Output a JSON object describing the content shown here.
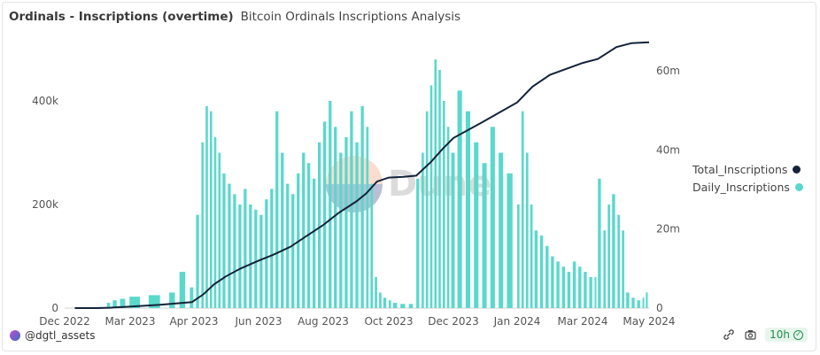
{
  "header": {
    "title": "Ordinals - Inscriptions (overtime)",
    "subtitle": "Bitcoin Ordinals Inscriptions Analysis"
  },
  "legend": {
    "total_label": "Total_Inscriptions",
    "daily_label": "Daily_Inscriptions"
  },
  "watermark": {
    "text": "Dune"
  },
  "footer": {
    "author": "@dgtl_assets",
    "refresh": "10h",
    "icons": [
      "embed-icon",
      "camera-icon",
      "check-circle-icon"
    ]
  },
  "colors": {
    "daily": "#5ad8cc",
    "total": "#13233a",
    "refresh_green": "#1e8e4e"
  },
  "chart_data": {
    "type": "bar+line",
    "x_ticks": [
      "Dec 2022",
      "Mar 2023",
      "Apr 2023",
      "Jun 2023",
      "Aug 2023",
      "Oct 2023",
      "Dec 2023",
      "Jan 2024",
      "Mar 2024",
      "May 2024"
    ],
    "x_tick_dates": [
      "2022-12-01",
      "2023-03-01",
      "2023-04-01",
      "2023-06-01",
      "2023-08-01",
      "2023-10-01",
      "2023-12-01",
      "2024-01-01",
      "2024-03-01",
      "2024-05-01"
    ],
    "y_left": {
      "ticks": [
        "0",
        "200k",
        "400k"
      ],
      "values": [
        0,
        200000,
        400000
      ],
      "range": [
        0,
        500000
      ]
    },
    "y_right": {
      "ticks": [
        "0",
        "20m",
        "40m",
        "60m"
      ],
      "values": [
        0,
        20000000,
        40000000,
        60000000
      ],
      "range": [
        0,
        70000000
      ]
    },
    "series": [
      {
        "name": "Daily_Inscriptions",
        "type": "bar",
        "axis": "left",
        "points": [
          [
            "2022-12-15",
            0
          ],
          [
            "2023-01-15",
            2000
          ],
          [
            "2023-01-28",
            10000
          ],
          [
            "2023-02-05",
            15000
          ],
          [
            "2023-02-15",
            18000
          ],
          [
            "2023-02-28",
            22000
          ],
          [
            "2023-03-10",
            25000
          ],
          [
            "2023-03-20",
            30000
          ],
          [
            "2023-03-25",
            70000
          ],
          [
            "2023-03-30",
            40000
          ],
          [
            "2023-04-03",
            180000
          ],
          [
            "2023-04-08",
            320000
          ],
          [
            "2023-04-12",
            390000
          ],
          [
            "2023-04-16",
            380000
          ],
          [
            "2023-04-20",
            330000
          ],
          [
            "2023-04-24",
            300000
          ],
          [
            "2023-04-28",
            260000
          ],
          [
            "2023-05-03",
            240000
          ],
          [
            "2023-05-08",
            220000
          ],
          [
            "2023-05-13",
            200000
          ],
          [
            "2023-05-18",
            230000
          ],
          [
            "2023-05-23",
            200000
          ],
          [
            "2023-05-28",
            190000
          ],
          [
            "2023-06-02",
            180000
          ],
          [
            "2023-06-07",
            210000
          ],
          [
            "2023-06-12",
            230000
          ],
          [
            "2023-06-17",
            380000
          ],
          [
            "2023-06-22",
            300000
          ],
          [
            "2023-06-27",
            240000
          ],
          [
            "2023-07-02",
            220000
          ],
          [
            "2023-07-07",
            260000
          ],
          [
            "2023-07-12",
            300000
          ],
          [
            "2023-07-17",
            280000
          ],
          [
            "2023-07-22",
            250000
          ],
          [
            "2023-07-27",
            320000
          ],
          [
            "2023-08-01",
            360000
          ],
          [
            "2023-08-06",
            400000
          ],
          [
            "2023-08-11",
            350000
          ],
          [
            "2023-08-16",
            300000
          ],
          [
            "2023-08-21",
            330000
          ],
          [
            "2023-08-26",
            380000
          ],
          [
            "2023-08-31",
            320000
          ],
          [
            "2023-09-05",
            390000
          ],
          [
            "2023-09-10",
            350000
          ],
          [
            "2023-09-14",
            240000
          ],
          [
            "2023-09-18",
            60000
          ],
          [
            "2023-09-22",
            30000
          ],
          [
            "2023-09-26",
            20000
          ],
          [
            "2023-10-01",
            15000
          ],
          [
            "2023-10-05",
            10000
          ],
          [
            "2023-10-12",
            8000
          ],
          [
            "2023-10-20",
            8000
          ],
          [
            "2023-10-27",
            250000
          ],
          [
            "2023-11-01",
            300000
          ],
          [
            "2023-11-05",
            380000
          ],
          [
            "2023-11-09",
            430000
          ],
          [
            "2023-11-13",
            480000
          ],
          [
            "2023-11-17",
            460000
          ],
          [
            "2023-11-21",
            400000
          ],
          [
            "2023-11-25",
            350000
          ],
          [
            "2023-11-29",
            300000
          ],
          [
            "2023-12-03",
            420000
          ],
          [
            "2023-12-07",
            380000
          ],
          [
            "2023-12-11",
            320000
          ],
          [
            "2023-12-15",
            280000
          ],
          [
            "2023-12-19",
            350000
          ],
          [
            "2023-12-23",
            300000
          ],
          [
            "2023-12-27",
            260000
          ],
          [
            "2024-01-01",
            200000
          ],
          [
            "2024-01-05",
            380000
          ],
          [
            "2024-01-09",
            300000
          ],
          [
            "2024-01-13",
            200000
          ],
          [
            "2024-01-17",
            150000
          ],
          [
            "2024-01-22",
            140000
          ],
          [
            "2024-01-27",
            120000
          ],
          [
            "2024-02-01",
            100000
          ],
          [
            "2024-02-06",
            90000
          ],
          [
            "2024-02-11",
            80000
          ],
          [
            "2024-02-16",
            70000
          ],
          [
            "2024-02-21",
            90000
          ],
          [
            "2024-02-26",
            80000
          ],
          [
            "2024-03-02",
            70000
          ],
          [
            "2024-03-07",
            60000
          ],
          [
            "2024-03-12",
            60000
          ],
          [
            "2024-03-15",
            250000
          ],
          [
            "2024-03-20",
            150000
          ],
          [
            "2024-03-24",
            200000
          ],
          [
            "2024-03-28",
            220000
          ],
          [
            "2024-04-02",
            180000
          ],
          [
            "2024-04-06",
            150000
          ],
          [
            "2024-04-10",
            30000
          ],
          [
            "2024-04-15",
            20000
          ],
          [
            "2024-04-20",
            15000
          ],
          [
            "2024-04-25",
            20000
          ],
          [
            "2024-04-28",
            30000
          ]
        ]
      },
      {
        "name": "Total_Inscriptions",
        "type": "line",
        "axis": "right",
        "points": [
          [
            "2022-12-15",
            0
          ],
          [
            "2023-01-15",
            10000
          ],
          [
            "2023-02-01",
            100000
          ],
          [
            "2023-02-20",
            300000
          ],
          [
            "2023-03-15",
            800000
          ],
          [
            "2023-03-31",
            1500000
          ],
          [
            "2023-04-10",
            3500000
          ],
          [
            "2023-04-20",
            6000000
          ],
          [
            "2023-05-01",
            8000000
          ],
          [
            "2023-05-15",
            10000000
          ],
          [
            "2023-06-01",
            12000000
          ],
          [
            "2023-06-15",
            13500000
          ],
          [
            "2023-07-01",
            15500000
          ],
          [
            "2023-07-15",
            18000000
          ],
          [
            "2023-08-01",
            21000000
          ],
          [
            "2023-08-15",
            24000000
          ],
          [
            "2023-09-01",
            27000000
          ],
          [
            "2023-09-10",
            29000000
          ],
          [
            "2023-09-20",
            32000000
          ],
          [
            "2023-10-01",
            33000000
          ],
          [
            "2023-10-15",
            33200000
          ],
          [
            "2023-10-27",
            33500000
          ],
          [
            "2023-11-10",
            37000000
          ],
          [
            "2023-11-20",
            40000000
          ],
          [
            "2023-12-01",
            43000000
          ],
          [
            "2023-12-15",
            47000000
          ],
          [
            "2024-01-01",
            52000000
          ],
          [
            "2024-01-15",
            56000000
          ],
          [
            "2024-01-31",
            59000000
          ],
          [
            "2024-02-15",
            60500000
          ],
          [
            "2024-03-01",
            62000000
          ],
          [
            "2024-03-15",
            63000000
          ],
          [
            "2024-04-01",
            66000000
          ],
          [
            "2024-04-15",
            67000000
          ],
          [
            "2024-05-01",
            67200000
          ]
        ]
      }
    ]
  }
}
